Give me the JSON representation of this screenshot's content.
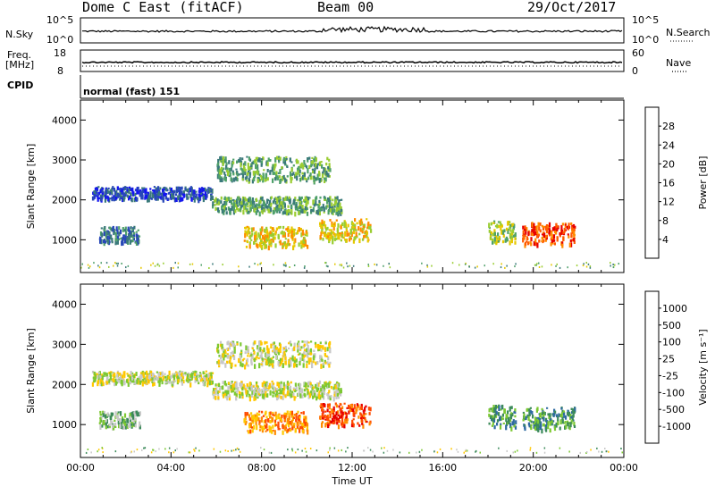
{
  "header": {
    "station": "Dome C East (fitACF)",
    "beam": "Beam 00",
    "date": "29/Oct/2017"
  },
  "summary": {
    "nsky_label": "N.Sky",
    "nsky_ticks": [
      "10^5",
      "10^0"
    ],
    "nsearch_label": "N.Search",
    "nsearch_ticks": [
      "10^5",
      "10^0"
    ],
    "freq_label_1": "Freq.",
    "freq_label_2": "[MHz]",
    "freq_ticks": [
      "18",
      "8"
    ],
    "nave_label": "Nave",
    "nave_ticks": [
      "60",
      "0"
    ],
    "cpid_label": "CPID",
    "cpid_text": "normal (fast) 151"
  },
  "chart_data": [
    {
      "type": "heatmap",
      "name": "power-panel",
      "ylabel": "Slant Range [km]",
      "yticks": [
        "4000",
        "3000",
        "2000",
        "1000"
      ],
      "ylim": [
        180,
        4500
      ],
      "xlim": [
        0,
        24
      ],
      "colorbar": {
        "label": "Power [dB]",
        "ticks": [
          "28",
          "24",
          "20",
          "16",
          "12",
          "8",
          "4"
        ],
        "colors": [
          "#1414f0",
          "#2848b8",
          "#3b7a7a",
          "#4fa06a",
          "#9acd32",
          "#e6c800",
          "#ff8c00",
          "#ff5a00",
          "#e60000"
        ]
      },
      "echo_regions": [
        {
          "t0": 0.5,
          "t1": 5.8,
          "r0": 2050,
          "r1": 2350,
          "level": 1
        },
        {
          "t0": 5.8,
          "t1": 11.5,
          "r0": 1700,
          "r1": 2100,
          "level": 3
        },
        {
          "t0": 6.0,
          "t1": 11.0,
          "r0": 2500,
          "r1": 3100,
          "level": 3
        },
        {
          "t0": 7.2,
          "t1": 10.0,
          "r0": 850,
          "r1": 1350,
          "level": 5
        },
        {
          "t0": 0.8,
          "t1": 2.6,
          "r0": 950,
          "r1": 1350,
          "level": 2
        },
        {
          "t0": 10.5,
          "t1": 12.8,
          "r0": 1000,
          "r1": 1550,
          "level": 5
        },
        {
          "t0": 18.0,
          "t1": 19.2,
          "r0": 950,
          "r1": 1500,
          "level": 4
        },
        {
          "t0": 19.5,
          "t1": 21.8,
          "r0": 900,
          "r1": 1450,
          "level": 7
        }
      ]
    },
    {
      "type": "heatmap",
      "name": "velocity-panel",
      "ylabel": "Slant Range [km]",
      "yticks": [
        "4000",
        "3000",
        "2000",
        "1000"
      ],
      "ylim": [
        180,
        4500
      ],
      "xlim": [
        0,
        24
      ],
      "xlabel": "Time UT",
      "xticks": [
        "00:00",
        "04:00",
        "08:00",
        "12:00",
        "16:00",
        "20:00",
        "00:00"
      ],
      "colorbar": {
        "label": "Velocity [m s⁻¹]",
        "ticks": [
          "1000",
          "500",
          "100",
          "25",
          "-25",
          "-100",
          "-500",
          "-1000"
        ],
        "colors": [
          "#1e32c8",
          "#2e6aa0",
          "#3c8a5a",
          "#7cc832",
          "#c8c8c8",
          "#ffc800",
          "#ff8c00",
          "#ff4a00",
          "#e60000"
        ]
      },
      "echo_regions": [
        {
          "t0": 0.5,
          "t1": 5.8,
          "r0": 2050,
          "r1": 2350,
          "level": 4
        },
        {
          "t0": 5.8,
          "t1": 11.5,
          "r0": 1700,
          "r1": 2100,
          "level": 4
        },
        {
          "t0": 6.0,
          "t1": 11.0,
          "r0": 2500,
          "r1": 3100,
          "level": 4
        },
        {
          "t0": 7.2,
          "t1": 10.0,
          "r0": 850,
          "r1": 1350,
          "level": 6
        },
        {
          "t0": 0.8,
          "t1": 2.6,
          "r0": 950,
          "r1": 1350,
          "level": 3
        },
        {
          "t0": 10.5,
          "t1": 12.8,
          "r0": 1000,
          "r1": 1550,
          "level": 7
        },
        {
          "t0": 18.0,
          "t1": 19.2,
          "r0": 950,
          "r1": 1500,
          "level": 2
        },
        {
          "t0": 19.5,
          "t1": 21.8,
          "r0": 900,
          "r1": 1450,
          "level": 2
        }
      ]
    }
  ]
}
